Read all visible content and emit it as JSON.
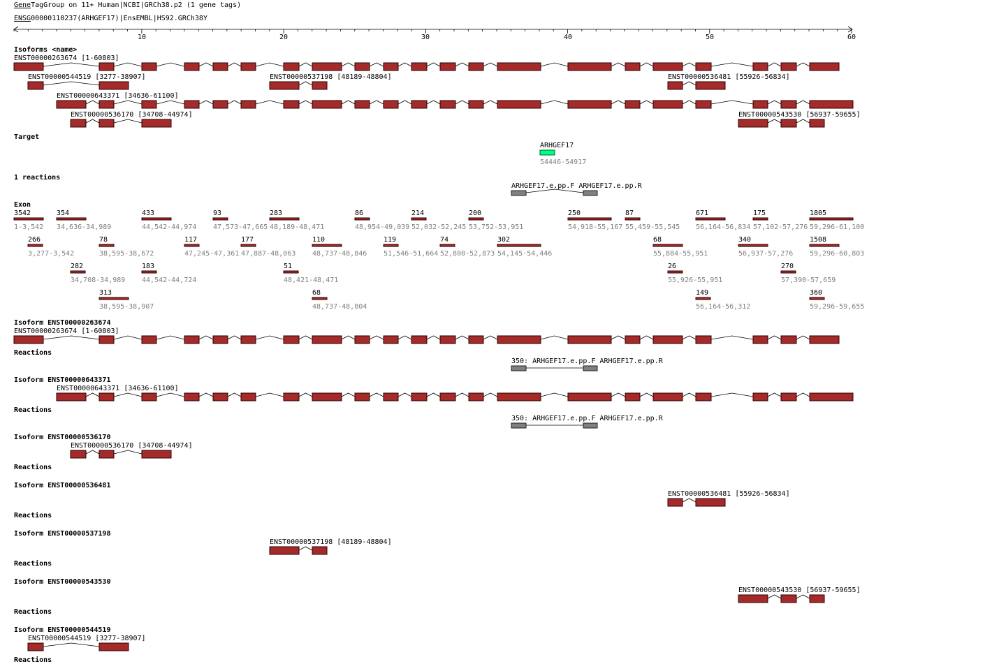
{
  "header": {
    "link": "Gene",
    "title": "TagGroup on 11+ Human|NCBI|GRCh38.p2 (1 gene tags)",
    "gene_link": "ENSG",
    "gene": "00000110237(ARHGEF17)|EnsEMBL|HS92.GRCh38",
    "gene_suffix": "Y"
  },
  "ruler": {
    "ticks": [
      "10",
      "20",
      "30",
      "40",
      "50",
      "60"
    ]
  },
  "labels": {
    "isoforms": "Isoforms <name>",
    "target": "Target",
    "reactions_count": "1 reactions",
    "exon": "Exon",
    "reactions": "Reactions"
  },
  "isoforms": [
    "ENST00000263674 [1-60803]",
    "ENST00000544519 [3277-38907]",
    "ENST00000537198 [48189-48804]",
    "ENST00000536481 [55926-56834]",
    "ENST00000643371 [34636-61100]",
    "ENST00000536170 [34708-44974]",
    "ENST00000543530 [56937-59655]"
  ],
  "target": {
    "name": "ARHGEF17",
    "range": "54446-54917"
  },
  "reaction": {
    "primers": "ARHGEF17.e.pp.F ARHGEF17.e.pp.R",
    "sized": "350: ARHGEF17.e.pp.F ARHGEF17.e.pp.R"
  },
  "exons": [
    {
      "size": "3542",
      "range": "1-3,542"
    },
    {
      "size": "354",
      "range": "34,636-34,989"
    },
    {
      "size": "433",
      "range": "44,542-44,974"
    },
    {
      "size": "93",
      "range": "47,573-47,665"
    },
    {
      "size": "283",
      "range": "48,189-48,471"
    },
    {
      "size": "86",
      "range": "48,954-49,039"
    },
    {
      "size": "214",
      "range": "52,032-52,245"
    },
    {
      "size": "200",
      "range": "53,752-53,951"
    },
    {
      "size": "250",
      "range": "54,918-55,167"
    },
    {
      "size": "87",
      "range": "55,459-55,545"
    },
    {
      "size": "671",
      "range": "56,164-56,834"
    },
    {
      "size": "175",
      "range": "57,102-57,276"
    },
    {
      "size": "1805",
      "range": "59,296-61,100"
    },
    {
      "size": "266",
      "range": "3,277-3,542"
    },
    {
      "size": "78",
      "range": "38,595-38,672"
    },
    {
      "size": "117",
      "range": "47,245-47,361"
    },
    {
      "size": "177",
      "range": "47,887-48,063"
    },
    {
      "size": "110",
      "range": "48,737-48,846"
    },
    {
      "size": "119",
      "range": "51,546-51,664"
    },
    {
      "size": "74",
      "range": "52,800-52,873"
    },
    {
      "size": "302",
      "range": "54,145-54,446"
    },
    {
      "size": "68",
      "range": "55,884-55,951"
    },
    {
      "size": "340",
      "range": "56,937-57,276"
    },
    {
      "size": "1508",
      "range": "59,296-60,803"
    },
    {
      "size": "282",
      "range": "34,708-34,989"
    },
    {
      "size": "183",
      "range": "44,542-44,724"
    },
    {
      "size": "51",
      "range": "48,421-48,471"
    },
    {
      "size": "26",
      "range": "55,926-55,951"
    },
    {
      "size": "270",
      "range": "57,390-57,659"
    },
    {
      "size": "313",
      "range": "38,595-38,907"
    },
    {
      "size": "68",
      "range": "48,737-48,804"
    },
    {
      "size": "149",
      "range": "56,164-56,312"
    },
    {
      "size": "360",
      "range": "59,296-59,655"
    }
  ],
  "detail": [
    {
      "heading": "Isoform ENST00000263674",
      "name": "ENST00000263674 [1-60803]"
    },
    {
      "heading": "Isoform ENST00000643371",
      "name": "ENST00000643371 [34636-61100]"
    },
    {
      "heading": "Isoform ENST00000536170",
      "name": "ENST00000536170 [34708-44974]"
    },
    {
      "heading": "Isoform ENST00000536481",
      "name": "ENST00000536481 [55926-56834]"
    },
    {
      "heading": "Isoform ENST00000537198",
      "name": "ENST00000537198 [48189-48804]"
    },
    {
      "heading": "Isoform ENST00000543530",
      "name": "ENST00000543530 [56937-59655]"
    },
    {
      "heading": "Isoform ENST00000544519",
      "name": "ENST00000544519 [3277-38907]"
    }
  ]
}
